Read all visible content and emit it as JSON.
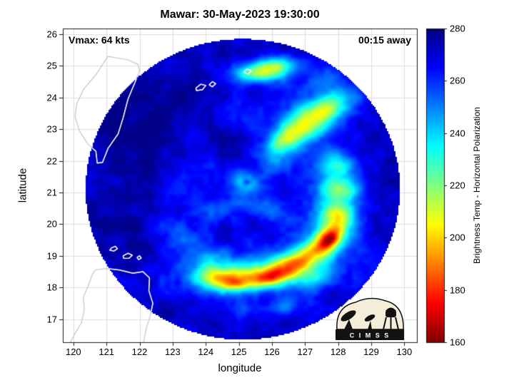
{
  "title": "Mawar: 30-May-2023 19:30:00",
  "annotations": {
    "vmax": "Vmax: 64 kts",
    "eta": "00:15 away"
  },
  "axes": {
    "xlabel": "longitude",
    "ylabel": "latitude",
    "x_ticks": [
      120,
      121,
      122,
      123,
      124,
      125,
      126,
      127,
      128,
      129,
      130
    ],
    "y_ticks": [
      17,
      18,
      19,
      20,
      21,
      22,
      23,
      24,
      25,
      26
    ],
    "xlim": [
      119.68,
      130.38
    ],
    "ylim": [
      16.27,
      26.18
    ],
    "grid": true,
    "grid_color": "#dcdcdc",
    "box_color": "#1a1a1a"
  },
  "colorbar": {
    "label": "Brightness Temp - Horizontal Polarization",
    "ticks": [
      160,
      180,
      200,
      220,
      240,
      260,
      280
    ],
    "min": 160,
    "max": 280,
    "stops": [
      {
        "t": 0.0,
        "rgb": [
          127,
          0,
          0
        ]
      },
      {
        "t": 0.125,
        "rgb": [
          255,
          0,
          0
        ]
      },
      {
        "t": 0.375,
        "rgb": [
          255,
          255,
          0
        ]
      },
      {
        "t": 0.625,
        "rgb": [
          0,
          255,
          255
        ]
      },
      {
        "t": 0.875,
        "rgb": [
          0,
          0,
          255
        ]
      },
      {
        "t": 1.0,
        "rgb": [
          0,
          0,
          127
        ]
      }
    ]
  },
  "logo": {
    "text": "C I M S S"
  },
  "chart_data": {
    "type": "heatmap",
    "title": "Mawar: 30-May-2023 19:30:00",
    "subtitle_left": "Vmax: 64 kts",
    "subtitle_right": "00:15 away",
    "xlabel": "longitude",
    "ylabel": "latitude",
    "xlim": [
      119.68,
      130.38
    ],
    "ylim": [
      16.27,
      26.18
    ],
    "value_label": "Brightness Temp - Horizontal Polarization",
    "value_range": [
      160,
      280
    ],
    "colormap": "jet-reversed (280=dark blue, 160=dark red)",
    "swath": {
      "center_lon": 125.12,
      "center_lat": 21.1,
      "radius_deg": 4.75,
      "background_temp": 270
    },
    "eye": {
      "lon": 125.2,
      "lat": 21.35
    },
    "feature_format": "[lon,lat,sigma_lon,sigma_lat,rotation_deg,delta_temp_K_subtracted_from_background]",
    "features": [
      [
        125.3,
        18.35,
        1.05,
        0.3,
        3,
        38
      ],
      [
        124.45,
        18.25,
        0.55,
        0.25,
        -6,
        34
      ],
      [
        126.35,
        18.55,
        0.5,
        0.28,
        18,
        42
      ],
      [
        125.85,
        18.3,
        0.3,
        0.15,
        8,
        24
      ],
      [
        124.95,
        18.12,
        0.3,
        0.13,
        0,
        20
      ],
      [
        125.4,
        18.5,
        1.8,
        0.55,
        4,
        16
      ],
      [
        127.45,
        19.25,
        0.55,
        0.28,
        38,
        38
      ],
      [
        127.8,
        19.7,
        0.4,
        0.3,
        60,
        44
      ],
      [
        127.72,
        19.5,
        0.22,
        0.13,
        45,
        24
      ],
      [
        128.0,
        20.35,
        0.3,
        0.4,
        85,
        40
      ],
      [
        128.08,
        21.1,
        0.26,
        0.45,
        88,
        38
      ],
      [
        127.95,
        21.85,
        0.3,
        0.4,
        80,
        32
      ],
      [
        127.8,
        20.6,
        0.8,
        1.4,
        0,
        14
      ],
      [
        126.9,
        18.95,
        0.5,
        0.25,
        25,
        28
      ],
      [
        127.25,
        23.3,
        0.5,
        0.33,
        28,
        40
      ],
      [
        126.65,
        22.85,
        0.42,
        0.28,
        40,
        33
      ],
      [
        127.85,
        23.85,
        0.45,
        0.3,
        33,
        26
      ],
      [
        126.2,
        22.5,
        0.35,
        0.25,
        48,
        26
      ],
      [
        127.1,
        23.3,
        1.3,
        0.7,
        28,
        14
      ],
      [
        126.05,
        24.95,
        0.45,
        0.22,
        8,
        42
      ],
      [
        125.45,
        24.75,
        0.35,
        0.18,
        0,
        28
      ],
      [
        125.9,
        24.85,
        0.95,
        0.35,
        8,
        15
      ],
      [
        125.2,
        21.35,
        0.28,
        0.22,
        0,
        20
      ],
      [
        125.45,
        21.1,
        0.3,
        0.2,
        30,
        12
      ],
      [
        124.55,
        20.55,
        0.6,
        0.3,
        25,
        13
      ],
      [
        125.9,
        20.45,
        0.55,
        0.3,
        -15,
        15
      ],
      [
        126.0,
        21.9,
        0.5,
        0.3,
        20,
        11
      ],
      [
        124.4,
        21.8,
        0.5,
        0.3,
        -25,
        9
      ],
      [
        123.3,
        21.1,
        0.7,
        0.5,
        0,
        9
      ],
      [
        123.1,
        19.6,
        0.6,
        0.35,
        -25,
        13
      ],
      [
        123.9,
        18.9,
        0.6,
        0.3,
        -10,
        15
      ],
      [
        124.6,
        23.5,
        0.8,
        0.35,
        -15,
        9
      ],
      [
        123.6,
        22.8,
        0.6,
        0.35,
        -35,
        8
      ],
      [
        126.35,
        17.4,
        0.4,
        0.2,
        10,
        16
      ],
      [
        127.3,
        18.3,
        0.35,
        0.2,
        30,
        18
      ],
      [
        125.2,
        17.3,
        0.5,
        0.2,
        0,
        9
      ],
      [
        127.6,
        24.55,
        0.4,
        0.25,
        20,
        12
      ],
      [
        125.22,
        21.32,
        0.07,
        0.07,
        0,
        -14
      ],
      [
        122.4,
        23.6,
        1.3,
        1.1,
        0,
        -7
      ],
      [
        121.3,
        20.3,
        1.3,
        1.3,
        0,
        -6
      ],
      [
        124.3,
        22.6,
        1.0,
        0.7,
        -20,
        -6
      ],
      [
        121.2,
        23.9,
        0.6,
        1.1,
        12,
        -5
      ],
      [
        129.3,
        21.5,
        0.8,
        1.2,
        0,
        -5
      ],
      [
        123.3,
        17.3,
        0.9,
        0.5,
        0,
        -4
      ],
      [
        126.9,
        25.3,
        0.9,
        0.4,
        0,
        -4
      ]
    ],
    "noise": {
      "octave1": {
        "freq_per_deg": 2.2,
        "amp": 10
      },
      "octave2": {
        "freq_per_deg": 6.0,
        "amp": 6
      }
    },
    "coastlines": {
      "taiwan": [
        [
          121.04,
          25.3
        ],
        [
          121.62,
          25.2
        ],
        [
          121.95,
          25.05
        ],
        [
          122.0,
          24.85
        ],
        [
          121.85,
          24.45
        ],
        [
          121.65,
          23.95
        ],
        [
          121.5,
          23.35
        ],
        [
          121.35,
          22.85
        ],
        [
          121.05,
          22.4
        ],
        [
          120.88,
          21.95
        ],
        [
          120.72,
          21.93
        ],
        [
          120.68,
          22.3
        ],
        [
          120.42,
          22.55
        ],
        [
          120.18,
          22.95
        ],
        [
          120.05,
          23.4
        ],
        [
          120.1,
          23.8
        ],
        [
          120.3,
          24.25
        ],
        [
          120.7,
          24.75
        ],
        [
          121.04,
          25.3
        ]
      ],
      "luzon": [
        [
          119.9,
          16.25
        ],
        [
          120.05,
          16.55
        ],
        [
          120.25,
          16.9
        ],
        [
          120.33,
          17.3
        ],
        [
          120.3,
          17.7
        ],
        [
          120.45,
          18.05
        ],
        [
          120.55,
          18.35
        ],
        [
          120.65,
          18.55
        ],
        [
          121.0,
          18.6
        ],
        [
          121.4,
          18.55
        ],
        [
          121.8,
          18.45
        ],
        [
          122.1,
          18.5
        ],
        [
          122.3,
          18.3
        ],
        [
          122.28,
          17.9
        ],
        [
          122.4,
          17.5
        ],
        [
          122.32,
          17.1
        ],
        [
          122.2,
          16.7
        ],
        [
          122.12,
          16.25
        ]
      ],
      "islands": [
        [
          [
            121.15,
            19.25
          ],
          [
            121.27,
            19.3
          ],
          [
            121.33,
            19.22
          ],
          [
            121.22,
            19.15
          ],
          [
            121.1,
            19.18
          ],
          [
            121.15,
            19.25
          ]
        ],
        [
          [
            121.5,
            19.0
          ],
          [
            121.65,
            19.08
          ],
          [
            121.78,
            19.02
          ],
          [
            121.68,
            18.92
          ],
          [
            121.52,
            18.92
          ],
          [
            121.5,
            19.0
          ]
        ],
        [
          [
            121.92,
            18.95
          ],
          [
            122.0,
            19.0
          ],
          [
            122.05,
            18.93
          ],
          [
            121.97,
            18.88
          ],
          [
            121.92,
            18.95
          ]
        ],
        [
          [
            123.7,
            24.3
          ],
          [
            123.85,
            24.42
          ],
          [
            124.0,
            24.38
          ],
          [
            123.9,
            24.25
          ],
          [
            123.72,
            24.22
          ],
          [
            123.7,
            24.3
          ]
        ],
        [
          [
            124.1,
            24.4
          ],
          [
            124.2,
            24.5
          ],
          [
            124.3,
            24.44
          ],
          [
            124.2,
            24.34
          ],
          [
            124.1,
            24.4
          ]
        ],
        [
          [
            125.15,
            24.8
          ],
          [
            125.25,
            24.9
          ],
          [
            125.38,
            24.85
          ],
          [
            125.28,
            24.74
          ],
          [
            125.15,
            24.8
          ]
        ]
      ]
    }
  }
}
